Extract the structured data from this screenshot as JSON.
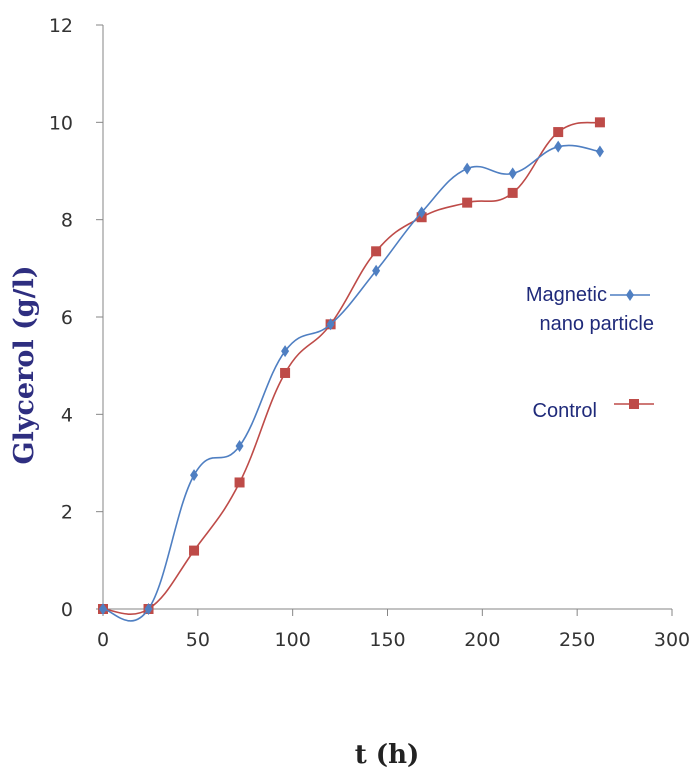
{
  "chart_data": {
    "type": "line",
    "xlabel": "t (h)",
    "ylabel": "Glycerol (g/l)",
    "xlim": [
      0,
      300
    ],
    "ylim": [
      0,
      12
    ],
    "x_ticks": [
      "0",
      "50",
      "100",
      "150",
      "200",
      "250",
      "300"
    ],
    "y_ticks": [
      "0",
      "2",
      "4",
      "6",
      "8",
      "10",
      "12"
    ],
    "grid": false,
    "legend_position": "right",
    "series": [
      {
        "name": "Magnetic nano particle",
        "legend_lines": [
          "Magnetic",
          "nano particle"
        ],
        "color": "#4f7fc2",
        "marker": "diamond",
        "x": [
          0,
          24,
          48,
          72,
          96,
          120,
          144,
          168,
          192,
          216,
          240,
          262
        ],
        "y": [
          0,
          0,
          2.75,
          3.35,
          5.3,
          5.85,
          6.95,
          8.15,
          9.05,
          8.95,
          9.5,
          9.4
        ]
      },
      {
        "name": "Control",
        "legend_lines": [
          "Control"
        ],
        "color": "#be4b48",
        "marker": "square",
        "x": [
          0,
          24,
          48,
          72,
          96,
          120,
          144,
          168,
          192,
          216,
          240,
          262
        ],
        "y": [
          0,
          0,
          1.2,
          2.6,
          4.85,
          5.85,
          7.35,
          8.05,
          8.35,
          8.55,
          9.8,
          10.0
        ]
      }
    ]
  }
}
